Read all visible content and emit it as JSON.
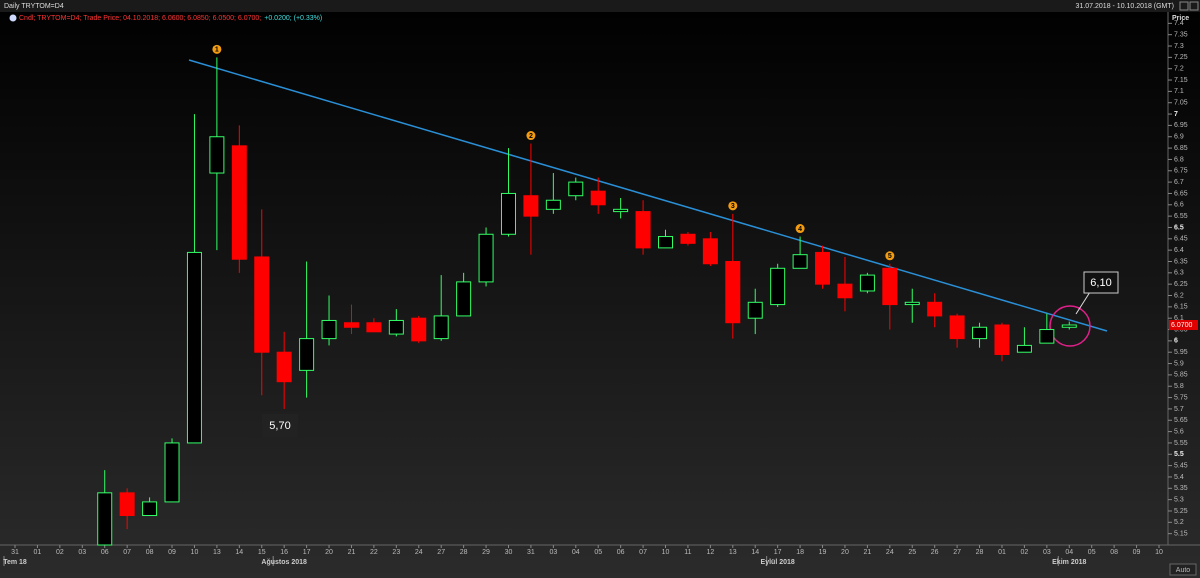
{
  "chart_data": {
    "type": "candlestick",
    "title": "Daily TRYTOM=D4",
    "date_range": "31.07.2018 - 10.10.2018 (GMT)",
    "legend": "Cndl; TRYTOM=D4; Trade Price; 04.10.2018; 6.0600; 6.0850; 6.0500; 6.0700;",
    "legend_change": "+0.0200; (+0.33%)",
    "y_axis_title": "Price",
    "auto_button": "Auto",
    "categories": [
      "31",
      "01",
      "02",
      "03",
      "06",
      "07",
      "08",
      "09",
      "10",
      "13",
      "14",
      "15",
      "16",
      "17",
      "20",
      "21",
      "22",
      "23",
      "24",
      "27",
      "28",
      "29",
      "30",
      "31",
      "03",
      "04",
      "05",
      "06",
      "07",
      "10",
      "11",
      "12",
      "13",
      "14",
      "17",
      "18",
      "19",
      "20",
      "21",
      "24",
      "25",
      "26",
      "27",
      "28",
      "01",
      "02",
      "03",
      "04",
      "05",
      "08",
      "09",
      "10"
    ],
    "months": [
      {
        "label": "Tem 18",
        "category": 0
      },
      {
        "label": "Ağustos 2018",
        "category": 12
      },
      {
        "label": "Eylül 2018",
        "category": 34
      },
      {
        "label": "Ekim 2018",
        "category": 47
      }
    ],
    "open": [
      null,
      null,
      null,
      null,
      5.1,
      5.33,
      5.23,
      5.29,
      5.55,
      6.74,
      6.86,
      6.37,
      5.95,
      5.87,
      6.01,
      6.08,
      6.08,
      6.03,
      6.1,
      6.01,
      6.11,
      6.26,
      6.47,
      6.64,
      6.58,
      6.64,
      6.66,
      6.57,
      6.57,
      6.41,
      6.47,
      6.45,
      6.35,
      6.1,
      6.16,
      6.32,
      6.39,
      6.25,
      6.22,
      6.32,
      6.16,
      6.17,
      6.11,
      6.01,
      6.07,
      5.95,
      5.99,
      6.06,
      null,
      null,
      null,
      null
    ],
    "high": [
      null,
      null,
      null,
      null,
      5.43,
      5.35,
      5.31,
      5.57,
      7.0,
      7.25,
      6.95,
      6.58,
      6.04,
      6.35,
      6.2,
      6.16,
      6.1,
      6.14,
      6.11,
      6.29,
      6.3,
      6.5,
      6.85,
      6.87,
      6.74,
      6.72,
      6.72,
      6.63,
      6.62,
      6.49,
      6.48,
      6.48,
      6.56,
      6.23,
      6.34,
      6.46,
      6.42,
      6.37,
      6.3,
      6.34,
      6.23,
      6.21,
      6.12,
      6.08,
      6.08,
      6.06,
      6.12,
      6.085,
      null,
      null,
      null,
      null
    ],
    "low": [
      null,
      null,
      null,
      null,
      5.1,
      5.17,
      5.23,
      5.29,
      5.55,
      6.4,
      6.3,
      5.76,
      5.7,
      5.75,
      5.98,
      6.03,
      6.04,
      6.02,
      5.99,
      6.0,
      6.11,
      6.24,
      6.46,
      6.38,
      6.56,
      6.62,
      6.56,
      6.54,
      6.38,
      6.41,
      6.42,
      6.33,
      6.01,
      6.03,
      6.15,
      6.32,
      6.23,
      6.13,
      6.21,
      6.05,
      6.08,
      6.06,
      5.97,
      5.97,
      5.91,
      5.95,
      5.99,
      6.05,
      null,
      null,
      null,
      null
    ],
    "close": [
      null,
      null,
      null,
      null,
      5.33,
      5.23,
      5.29,
      5.55,
      6.39,
      6.9,
      6.36,
      5.95,
      5.82,
      6.01,
      6.09,
      6.06,
      6.04,
      6.09,
      6.0,
      6.11,
      6.26,
      6.47,
      6.65,
      6.55,
      6.62,
      6.7,
      6.6,
      6.58,
      6.41,
      6.46,
      6.43,
      6.34,
      6.08,
      6.17,
      6.32,
      6.38,
      6.25,
      6.19,
      6.29,
      6.16,
      6.17,
      6.11,
      6.01,
      6.06,
      5.94,
      5.98,
      6.05,
      6.07,
      null,
      null,
      null,
      null
    ],
    "up_color": "#33ff66",
    "down_color": "#ff0000",
    "ylim": [
      5.1,
      7.45
    ],
    "yticks": [
      7.4,
      7.35,
      7.3,
      7.25,
      7.2,
      7.15,
      7.1,
      7.05,
      7,
      6.95,
      6.9,
      6.85,
      6.8,
      6.75,
      6.7,
      6.65,
      6.6,
      6.55,
      6.5,
      6.45,
      6.4,
      6.35,
      6.3,
      6.25,
      6.2,
      6.15,
      6.1,
      6.05,
      6,
      5.95,
      5.9,
      5.85,
      5.8,
      5.75,
      5.7,
      5.65,
      5.6,
      5.55,
      5.5,
      5.45,
      5.4,
      5.35,
      5.3,
      5.25,
      5.2,
      5.15
    ],
    "last_price": {
      "value": 6.07,
      "label": "6.0700"
    },
    "markers": [
      {
        "label": "1",
        "category": 9
      },
      {
        "label": "2",
        "category": 23
      },
      {
        "label": "3",
        "category": 32
      },
      {
        "label": "4",
        "category": 35
      },
      {
        "label": "5",
        "category": 39
      }
    ],
    "annotations": [
      "5,70",
      "6,10"
    ]
  }
}
